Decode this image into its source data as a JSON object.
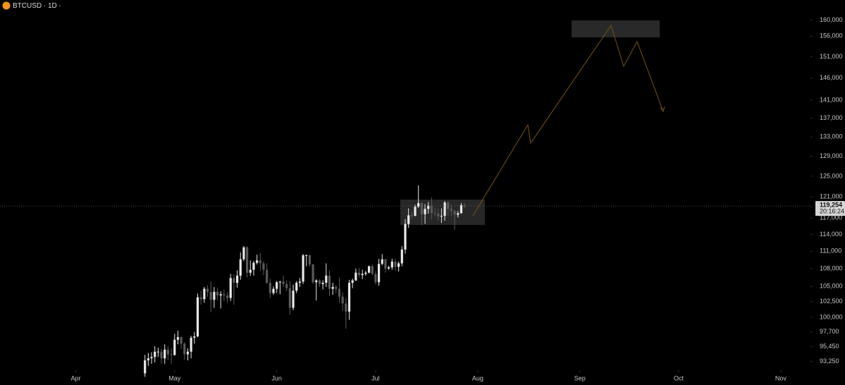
{
  "chart_data": {
    "type": "candlestick",
    "title": "BTCUSD · 1D ·",
    "x": [
      21,
      22,
      23,
      24,
      25,
      26,
      27,
      28,
      29,
      30,
      31,
      32,
      33,
      34,
      35,
      36,
      37,
      38,
      39,
      40,
      41,
      42,
      43,
      44,
      45,
      46,
      47,
      48,
      49,
      50,
      51,
      52,
      53,
      54,
      55,
      56,
      57,
      58,
      59,
      60,
      61,
      62,
      63,
      64,
      65,
      66,
      67,
      68,
      69,
      70,
      71,
      72,
      73,
      74,
      75,
      76,
      77,
      78,
      79,
      80,
      81,
      82,
      83,
      84,
      85,
      86,
      87,
      88,
      89,
      90,
      91,
      92,
      93,
      94,
      95,
      96,
      97,
      98,
      99,
      100,
      101,
      102,
      103,
      104,
      105,
      106,
      107,
      108,
      109,
      110,
      111,
      112,
      113,
      114,
      115,
      116,
      117,
      118
    ],
    "open": [
      91500,
      93400,
      93700,
      93900,
      94700,
      94700,
      93700,
      95000,
      94300,
      94200,
      96500,
      96900,
      95900,
      94300,
      94700,
      96800,
      97000,
      103200,
      102900,
      104600,
      104100,
      102800,
      104100,
      103500,
      103700,
      103500,
      103100,
      106400,
      105600,
      106800,
      109600,
      111700,
      107300,
      107800,
      109000,
      109400,
      108900,
      107800,
      105600,
      103900,
      104600,
      105700,
      105800,
      105400,
      104700,
      101500,
      104300,
      105600,
      105800,
      110300,
      110300,
      108700,
      105700,
      106000,
      105400,
      105600,
      106800,
      104600,
      104900,
      104600,
      103300,
      102200,
      100900,
      105600,
      106000,
      107300,
      106900,
      107100,
      107300,
      108400,
      107100,
      105700,
      108800,
      109600,
      108000,
      108200,
      109200,
      108300,
      108900,
      111300,
      115900,
      117500,
      117400,
      119100,
      119800,
      117700,
      118700,
      119300,
      117900,
      117800,
      117300,
      117400,
      119900,
      118700,
      118300,
      117600,
      117900,
      119400
    ],
    "high": [
      94200,
      94500,
      94600,
      95500,
      95300,
      95200,
      95800,
      95500,
      95200,
      97400,
      97900,
      97000,
      96100,
      95200,
      97100,
      97700,
      103800,
      104300,
      104900,
      105200,
      105800,
      104900,
      104800,
      104200,
      104500,
      104000,
      107100,
      107000,
      107700,
      110800,
      111900,
      111900,
      109400,
      109300,
      110400,
      110700,
      109300,
      108900,
      106300,
      105000,
      105900,
      105900,
      106800,
      106000,
      105900,
      105300,
      105900,
      106400,
      110500,
      110400,
      110400,
      108800,
      106200,
      106200,
      106000,
      108900,
      107700,
      105600,
      105200,
      106500,
      104000,
      103100,
      106100,
      106300,
      108000,
      108100,
      107800,
      107600,
      108500,
      108700,
      107600,
      109700,
      110500,
      109700,
      108500,
      109700,
      109700,
      109200,
      111900,
      116800,
      118800,
      118200,
      119500,
      123200,
      119900,
      119600,
      120000,
      120900,
      118900,
      118800,
      118800,
      120200,
      120100,
      119500,
      118600,
      118300,
      119800,
      119800
    ],
    "low": [
      91000,
      92600,
      92900,
      93100,
      93900,
      92900,
      92900,
      93500,
      92900,
      94100,
      95800,
      95100,
      93500,
      93400,
      93700,
      95900,
      96900,
      102000,
      102300,
      103300,
      100800,
      101500,
      102700,
      101400,
      102600,
      102300,
      102600,
      102000,
      104800,
      106100,
      109300,
      106500,
      106800,
      106800,
      108700,
      107600,
      106900,
      105400,
      103100,
      103600,
      103900,
      103700,
      104900,
      104200,
      100400,
      101100,
      103900,
      104900,
      105400,
      108400,
      108300,
      105400,
      102700,
      104900,
      104500,
      104900,
      103400,
      103600,
      103900,
      102300,
      101000,
      98200,
      99600,
      104700,
      105900,
      106500,
      106200,
      106800,
      107200,
      106900,
      105300,
      105100,
      108600,
      107300,
      107800,
      107800,
      107600,
      107500,
      108400,
      110600,
      115200,
      116900,
      117300,
      118900,
      115700,
      115900,
      117800,
      116800,
      117300,
      116500,
      116100,
      116500,
      117400,
      117300,
      114800,
      117100,
      117800,
      118800
    ],
    "close": [
      93400,
      93700,
      93900,
      94700,
      94700,
      93700,
      95000,
      94300,
      94200,
      96500,
      96900,
      95900,
      94300,
      94700,
      96800,
      97000,
      103200,
      102900,
      104600,
      104100,
      102800,
      104100,
      103500,
      103700,
      103500,
      103100,
      106400,
      105600,
      106800,
      109600,
      111700,
      107300,
      107800,
      109000,
      109400,
      108900,
      107800,
      105600,
      103900,
      104600,
      105700,
      105800,
      105400,
      104700,
      101500,
      104300,
      105600,
      105800,
      110300,
      110300,
      108700,
      105700,
      106000,
      105400,
      105600,
      106800,
      104600,
      104900,
      104600,
      103300,
      102200,
      100900,
      105600,
      106000,
      107300,
      106900,
      107100,
      107300,
      108400,
      107100,
      105700,
      108800,
      109600,
      108000,
      108200,
      109200,
      108300,
      108900,
      111300,
      115900,
      117500,
      117400,
      119100,
      119800,
      117700,
      118700,
      119300,
      117900,
      117800,
      117300,
      117400,
      119900,
      118700,
      118300,
      117600,
      117900,
      119400,
      119254
    ],
    "up_color": "#e8e8e8",
    "down_color": "#5a5a5a",
    "xlim": [
      -23,
      223
    ],
    "xticks": [
      {
        "value": 0,
        "label": "Apr"
      },
      {
        "value": 30,
        "label": "May"
      },
      {
        "value": 61,
        "label": "Jun"
      },
      {
        "value": 91,
        "label": "Jul"
      },
      {
        "value": 122,
        "label": "Aug"
      },
      {
        "value": 153,
        "label": "Sep"
      },
      {
        "value": 183,
        "label": "Oct"
      },
      {
        "value": 214,
        "label": "Nov"
      }
    ],
    "ylim": [
      91960,
      165200
    ],
    "log_scale": true,
    "yticks": [
      {
        "value": 160000,
        "label": "160,000"
      },
      {
        "value": 156000,
        "label": "156,000"
      },
      {
        "value": 151000,
        "label": "151,000"
      },
      {
        "value": 146000,
        "label": "146,000"
      },
      {
        "value": 141000,
        "label": "141,000"
      },
      {
        "value": 137000,
        "label": "137,000"
      },
      {
        "value": 133000,
        "label": "133,000"
      },
      {
        "value": 129000,
        "label": "129,000"
      },
      {
        "value": 125000,
        "label": "125,000"
      },
      {
        "value": 121000,
        "label": "121,000"
      },
      {
        "value": 117000,
        "label": "117,000"
      },
      {
        "value": 114000,
        "label": "114,000"
      },
      {
        "value": 111000,
        "label": "111,000"
      },
      {
        "value": 108000,
        "label": "108,000"
      },
      {
        "value": 105000,
        "label": "105,000"
      },
      {
        "value": 102500,
        "label": "102,500"
      },
      {
        "value": 100000,
        "label": "100,000"
      },
      {
        "value": 97700,
        "label": "97,700"
      },
      {
        "value": 95450,
        "label": "95,450"
      },
      {
        "value": 93250,
        "label": "93,250"
      }
    ],
    "last_price": {
      "value": 119254,
      "label": "119,254"
    },
    "countdown": "20:16:24"
  }
}
